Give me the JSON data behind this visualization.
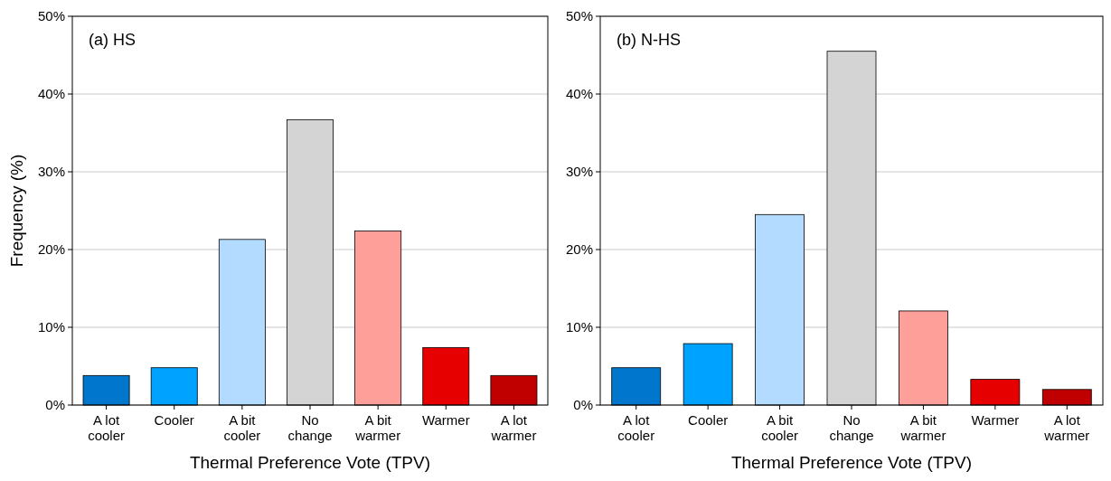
{
  "chart_data": [
    {
      "type": "bar",
      "categories": [
        "A lot cooler",
        "Cooler",
        "A bit cooler",
        "No change",
        "A bit warmer",
        "Warmer",
        "A lot warmer"
      ],
      "values": [
        3.8,
        4.8,
        21.3,
        36.7,
        22.4,
        7.4,
        3.8
      ],
      "colors": [
        "#0077cc",
        "#00a2ff",
        "#b3dbff",
        "#d4d4d4",
        "#ff9f9a",
        "#e60000",
        "#c00000"
      ],
      "ylim": [
        0,
        50
      ],
      "yticks": [
        {
          "value": 0,
          "label": "0%"
        },
        {
          "value": 10,
          "label": "10%"
        },
        {
          "value": 20,
          "label": "20%"
        },
        {
          "value": 30,
          "label": "30%"
        },
        {
          "value": 40,
          "label": "40%"
        },
        {
          "value": 50,
          "label": "50%"
        }
      ],
      "grid": "y",
      "xlabel": "Thermal Preference Vote (TPV)",
      "ylabel": "Frequency (%)",
      "annotations": [
        "(a) HS"
      ]
    },
    {
      "type": "bar",
      "categories": [
        "A lot cooler",
        "Cooler",
        "A bit cooler",
        "No change",
        "A bit warmer",
        "Warmer",
        "A lot warmer"
      ],
      "values": [
        4.8,
        7.9,
        24.5,
        45.5,
        12.1,
        3.3,
        2.0
      ],
      "colors": [
        "#0077cc",
        "#00a2ff",
        "#b3dbff",
        "#d4d4d4",
        "#ff9f9a",
        "#e60000",
        "#c00000"
      ],
      "ylim": [
        0,
        50
      ],
      "yticks": [
        {
          "value": 0,
          "label": "0%"
        },
        {
          "value": 10,
          "label": "10%"
        },
        {
          "value": 20,
          "label": "20%"
        },
        {
          "value": 30,
          "label": "30%"
        },
        {
          "value": 40,
          "label": "40%"
        },
        {
          "value": 50,
          "label": "50%"
        }
      ],
      "grid": "y",
      "xlabel": "Thermal Preference Vote (TPV)",
      "annotations": [
        "(b) N-HS"
      ]
    }
  ]
}
